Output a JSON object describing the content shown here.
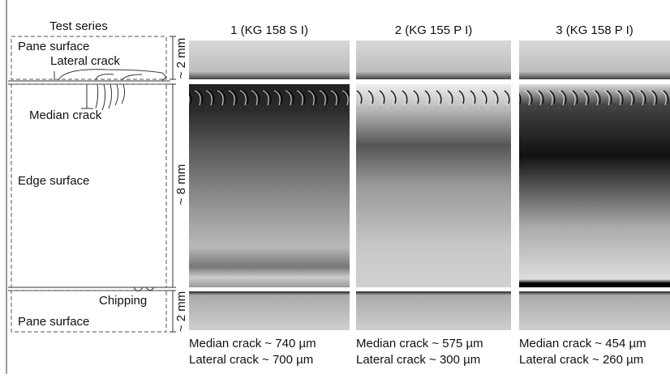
{
  "schematic": {
    "header": "Test series",
    "labels": [
      "Pane surface",
      "Lateral crack",
      "Median crack",
      "Edge surface",
      "Chipping",
      "Pane surface"
    ],
    "dimensions": [
      "~ 2 mm",
      "~ 8 mm",
      "~ 2 mm"
    ]
  },
  "samples": [
    {
      "title": "1 (KG 158 S I)",
      "median_crack": "Median crack ~ 740 µm",
      "lateral_crack": "Lateral crack ~ 700 µm"
    },
    {
      "title": "2 (KG 155 P I)",
      "median_crack": "Median crack ~ 575 µm",
      "lateral_crack": "Lateral crack ~ 300 µm"
    },
    {
      "title": "3 (KG 158 P I)",
      "median_crack": "Median crack ~ 454 µm",
      "lateral_crack": "Lateral crack ~ 260 µm"
    }
  ]
}
